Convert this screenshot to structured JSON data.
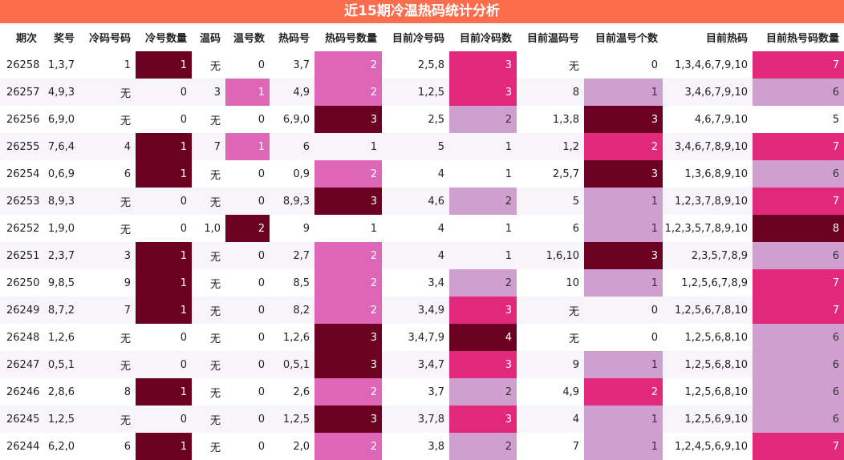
{
  "title": "近15期冷温热码统计分析",
  "headers": [
    "期次",
    "奖号",
    "冷码号码",
    "冷号数量",
    "温码",
    "温号数",
    "热码号",
    "热码号数量",
    "目前冷号码",
    "目前冷码数",
    "目前温码号",
    "目前温号个数",
    "目前热码",
    "目前热号码数量"
  ],
  "colors": {
    "title_bg": "#fb6d4c",
    "dark": "#6b0022",
    "magenta": "#e1287a",
    "pink": "#de66b7",
    "light_purple": "#cf9fd0",
    "zebra": "#f7f5fa"
  },
  "rows": [
    {
      "cells": [
        "26258",
        "1,3,7",
        "1",
        "1",
        "无",
        "0",
        "3,7",
        "2",
        "2,5,8",
        "3",
        "无",
        "0",
        "1,3,4,6,7,9,10",
        "7"
      ]
    },
    {
      "cells": [
        "26257",
        "4,9,3",
        "无",
        "0",
        "3",
        "1",
        "4,9",
        "2",
        "1,2,5",
        "3",
        "8",
        "1",
        "3,4,6,7,9,10",
        "6"
      ]
    },
    {
      "cells": [
        "26256",
        "6,9,0",
        "无",
        "0",
        "无",
        "0",
        "6,9,0",
        "3",
        "2,5",
        "2",
        "1,3,8",
        "3",
        "4,6,7,9,10",
        "5"
      ]
    },
    {
      "cells": [
        "26255",
        "7,6,4",
        "4",
        "1",
        "7",
        "1",
        "6",
        "1",
        "5",
        "1",
        "1,2",
        "2",
        "3,4,6,7,8,9,10",
        "7"
      ]
    },
    {
      "cells": [
        "26254",
        "0,6,9",
        "6",
        "1",
        "无",
        "0",
        "0,9",
        "2",
        "4",
        "1",
        "2,5,7",
        "3",
        "1,3,6,8,9,10",
        "6"
      ]
    },
    {
      "cells": [
        "26253",
        "8,9,3",
        "无",
        "0",
        "无",
        "0",
        "8,9,3",
        "3",
        "4,6",
        "2",
        "5",
        "1",
        "1,2,3,7,8,9,10",
        "7"
      ]
    },
    {
      "cells": [
        "26252",
        "1,9,0",
        "无",
        "0",
        "1,0",
        "2",
        "9",
        "1",
        "4",
        "1",
        "6",
        "1",
        "1,2,3,5,7,8,9,10",
        "8"
      ]
    },
    {
      "cells": [
        "26251",
        "2,3,7",
        "3",
        "1",
        "无",
        "0",
        "2,7",
        "2",
        "4",
        "1",
        "1,6,10",
        "3",
        "2,3,5,7,8,9",
        "6"
      ]
    },
    {
      "cells": [
        "26250",
        "9,8,5",
        "9",
        "1",
        "无",
        "0",
        "8,5",
        "2",
        "3,4",
        "2",
        "10",
        "1",
        "1,2,5,6,7,8,9",
        "7"
      ]
    },
    {
      "cells": [
        "26249",
        "8,7,2",
        "7",
        "1",
        "无",
        "0",
        "8,2",
        "2",
        "3,4,9",
        "3",
        "无",
        "0",
        "1,2,5,6,7,8,10",
        "7"
      ]
    },
    {
      "cells": [
        "26248",
        "1,2,6",
        "无",
        "0",
        "无",
        "0",
        "1,2,6",
        "3",
        "3,4,7,9",
        "4",
        "无",
        "0",
        "1,2,5,6,8,10",
        "6"
      ]
    },
    {
      "cells": [
        "26247",
        "0,5,1",
        "无",
        "0",
        "无",
        "0",
        "0,5,1",
        "3",
        "3,4,7",
        "3",
        "9",
        "1",
        "1,2,5,6,8,10",
        "6"
      ]
    },
    {
      "cells": [
        "26246",
        "2,8,6",
        "8",
        "1",
        "无",
        "0",
        "2,6",
        "2",
        "3,7",
        "2",
        "4,9",
        "2",
        "1,2,5,6,8,10",
        "6"
      ]
    },
    {
      "cells": [
        "26245",
        "1,2,5",
        "无",
        "0",
        "无",
        "0",
        "1,2,5",
        "3",
        "3,7,8",
        "3",
        "4",
        "1",
        "1,2,5,6,9,10",
        "6"
      ]
    },
    {
      "cells": [
        "26244",
        "6,2,0",
        "6",
        "1",
        "无",
        "0",
        "2,0",
        "2",
        "3,8",
        "2",
        "7",
        "1",
        "1,2,4,5,6,9,10",
        "7"
      ]
    }
  ]
}
